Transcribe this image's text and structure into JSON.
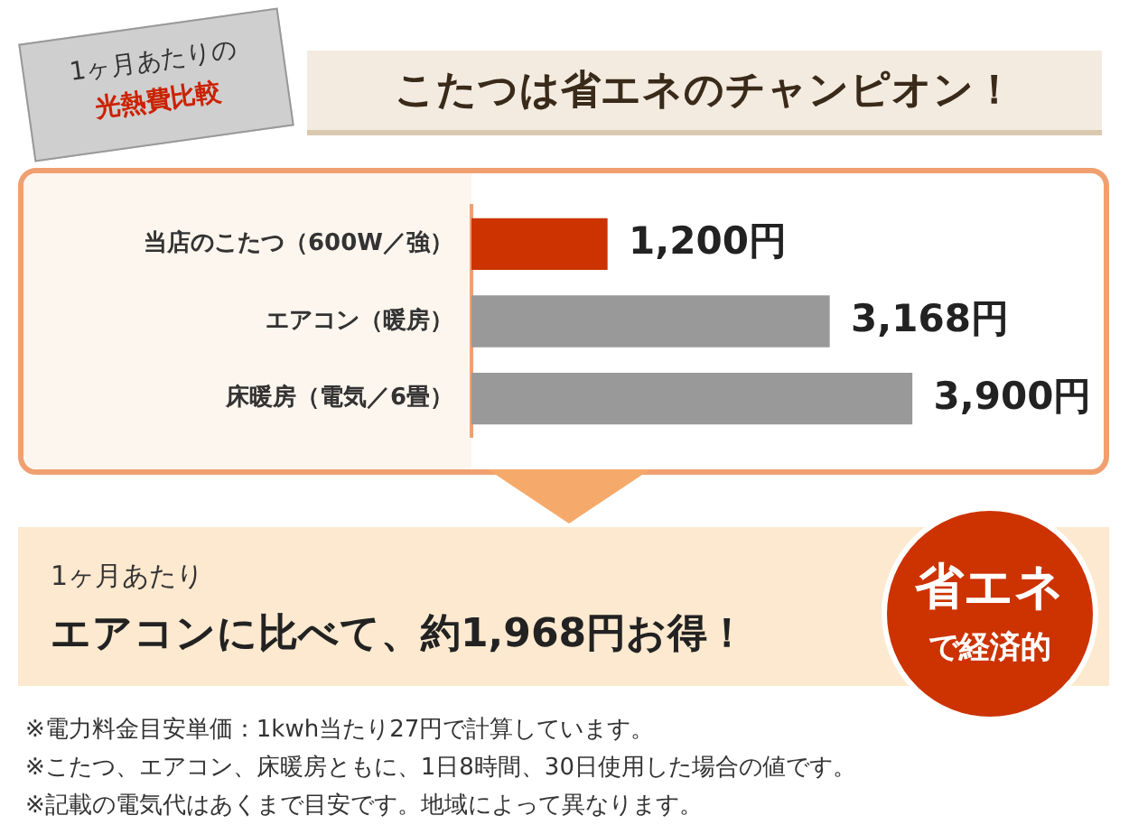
{
  "chart_data": {
    "type": "bar",
    "orientation": "horizontal",
    "title": "こたつは省エネのチャンピオン！",
    "categories": [
      "当店のこたつ（600W／強）",
      "エアコン（暖房）",
      "床暖房（電気／6畳）"
    ],
    "values": [
      1200,
      3168,
      3900
    ],
    "colors": [
      "#cc3300",
      "#999999",
      "#999999"
    ],
    "value_labels": [
      "1,200円",
      "3,168円",
      "3,900円"
    ],
    "tick_labels": "y",
    "annotations": [
      "1ヶ月あたりの",
      "光熱費比較",
      "1ヶ月あたり",
      "エアコンに比べて、約1,968円お得！",
      "省エネ",
      "で経済的",
      "※電力料金目安単価：1kwh当たり27円で計算しています。",
      "※こたつ、エアコン、床暖房ともに、1日8時間、30日使用した場合の値です。",
      "※記載の電気代はあくまで目安です。地域によって異なります。"
    ]
  }
}
